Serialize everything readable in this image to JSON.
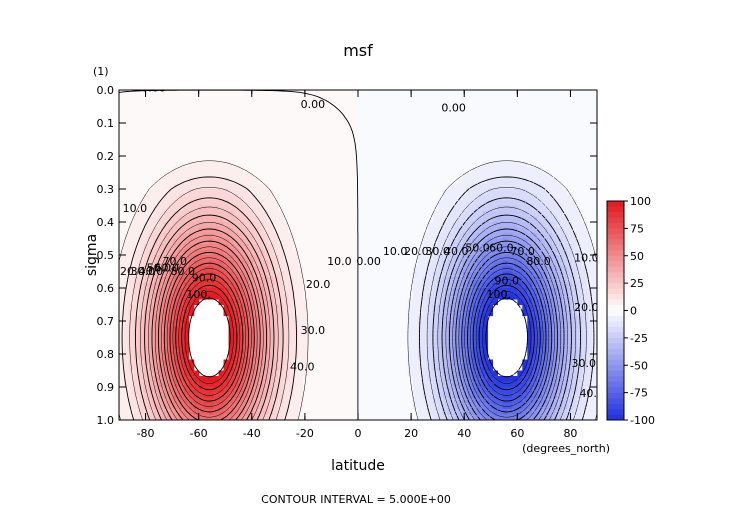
{
  "chart_data": {
    "type": "heatmap",
    "title": "msf",
    "xlabel": "latitude",
    "ylabel": "sigma",
    "y_unit": "(1)",
    "x_unit": "(degrees_north)",
    "footer": "CONTOUR INTERVAL = 5.000E+00",
    "xlim": [
      -90,
      90
    ],
    "ylim": [
      1.0,
      0.0
    ],
    "y_inverted": true,
    "x_ticks": [
      -80,
      -60,
      -40,
      -20,
      0,
      20,
      40,
      60,
      80
    ],
    "x_tick_labels": [
      "-80",
      "-60",
      "-40",
      "-20",
      "0",
      "20",
      "40",
      "60",
      "80"
    ],
    "y_ticks": [
      0.0,
      0.1,
      0.2,
      0.3,
      0.4,
      0.5,
      0.6,
      0.7,
      0.8,
      0.9,
      1.0
    ],
    "y_tick_labels": [
      "0.0",
      "0.1",
      "0.2",
      "0.3",
      "0.4",
      "0.5",
      "0.6",
      "0.7",
      "0.8",
      "0.9",
      "1.0"
    ],
    "colorbar": {
      "range": [
        -100,
        100
      ],
      "ticks": [
        100,
        75,
        50,
        25,
        0,
        -25,
        -50,
        -75,
        -100
      ],
      "tick_labels": [
        "100",
        "75",
        "50",
        "25",
        "0",
        "-25",
        "-50",
        "-75",
        "-100"
      ],
      "colormap": "blue-white-red",
      "color_low": "#1f2fdc",
      "color_mid": "#ffffff",
      "color_high": "#e0171b"
    },
    "contour_interval": 5,
    "cells": {
      "north": {
        "center_lat": 56,
        "center_sigma": 0.75,
        "peak": -115,
        "sign": "negative"
      },
      "south": {
        "center_lat": -56,
        "center_sigma": 0.75,
        "peak": 115,
        "sign": "positive"
      }
    },
    "contour_labels": [
      {
        "text": "0.00",
        "lat": -77,
        "sigma": 0.005
      },
      {
        "text": "0.00",
        "lat": -17,
        "sigma": 0.055
      },
      {
        "text": "0.00",
        "lat": 36,
        "sigma": 0.065
      },
      {
        "text": "0.00",
        "lat": 4,
        "sigma": 0.53
      },
      {
        "text": "10.0",
        "lat": -84,
        "sigma": 0.37
      },
      {
        "text": "20.0",
        "lat": -85,
        "sigma": 0.56
      },
      {
        "text": "30.0",
        "lat": -81,
        "sigma": 0.56
      },
      {
        "text": "40.0",
        "lat": -78,
        "sigma": 0.56
      },
      {
        "text": "50.0",
        "lat": -75,
        "sigma": 0.55
      },
      {
        "text": "60.0",
        "lat": -72,
        "sigma": 0.55
      },
      {
        "text": "70.0",
        "lat": -69,
        "sigma": 0.53
      },
      {
        "text": "80.0",
        "lat": -66,
        "sigma": 0.56
      },
      {
        "text": "90.0",
        "lat": -58,
        "sigma": 0.58
      },
      {
        "text": "100.",
        "lat": -60,
        "sigma": 0.63
      },
      {
        "text": "10.0",
        "lat": -7,
        "sigma": 0.53
      },
      {
        "text": "20.0",
        "lat": -15,
        "sigma": 0.6
      },
      {
        "text": "30.0",
        "lat": -17,
        "sigma": 0.74
      },
      {
        "text": "40.0",
        "lat": -21,
        "sigma": 0.85
      },
      {
        "text": "10.0",
        "lat": 14,
        "sigma": 0.5
      },
      {
        "text": "20.0",
        "lat": 22,
        "sigma": 0.5
      },
      {
        "text": "30.0",
        "lat": 30,
        "sigma": 0.5
      },
      {
        "text": "40.0",
        "lat": 37,
        "sigma": 0.5
      },
      {
        "text": "50.0",
        "lat": 45,
        "sigma": 0.49
      },
      {
        "text": "60.0",
        "lat": 54,
        "sigma": 0.49
      },
      {
        "text": "70.0",
        "lat": 62,
        "sigma": 0.5
      },
      {
        "text": "80.0",
        "lat": 68,
        "sigma": 0.53
      },
      {
        "text": "90.0",
        "lat": 56,
        "sigma": 0.59
      },
      {
        "text": "100.",
        "lat": 53,
        "sigma": 0.63
      },
      {
        "text": "10.0",
        "lat": 86,
        "sigma": 0.52
      },
      {
        "text": "20.0",
        "lat": 86,
        "sigma": 0.67
      },
      {
        "text": "30.0",
        "lat": 85,
        "sigma": 0.84
      },
      {
        "text": "40.0",
        "lat": 88,
        "sigma": 0.93
      }
    ]
  }
}
